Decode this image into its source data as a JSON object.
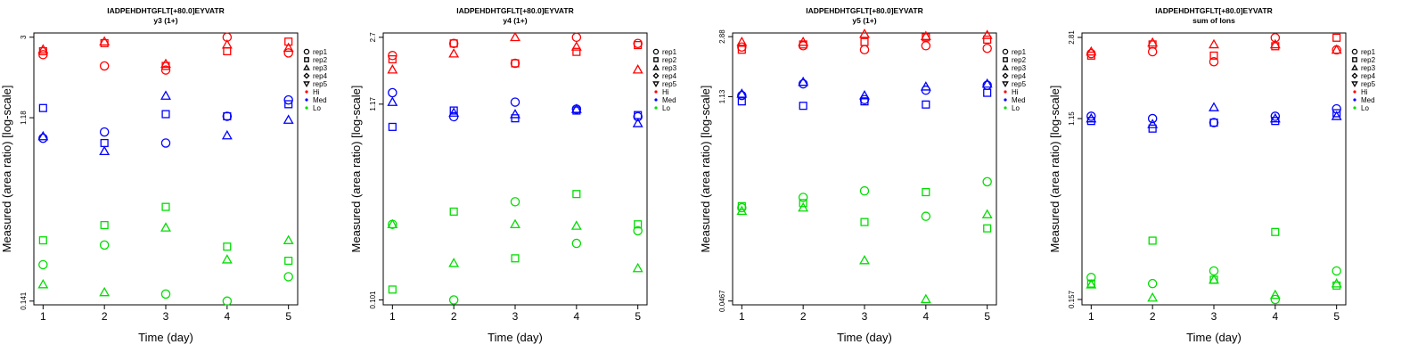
{
  "legend": {
    "reps": [
      {
        "label": "rep1",
        "shape": "circle"
      },
      {
        "label": "rep2",
        "shape": "square"
      },
      {
        "label": "rep3",
        "shape": "triangle-up"
      },
      {
        "label": "rep4",
        "shape": "diamond"
      },
      {
        "label": "rep5",
        "shape": "triangle-down"
      }
    ],
    "levels": [
      {
        "label": "Hi",
        "color": "#ff0000"
      },
      {
        "label": "Med",
        "color": "#0000ff"
      },
      {
        "label": "Lo",
        "color": "#00dd00"
      }
    ]
  },
  "chart_data": [
    {
      "type": "scatter",
      "title": "IADPEHDHTGFLT[+80.0]EYVATR",
      "subtitle": "y3 (1+)",
      "xlabel": "Time (day)",
      "ylabel": "Measured (area ratio) [log-scale]",
      "x_ticks": [
        1,
        2,
        3,
        4,
        5
      ],
      "y_ticks": [
        "0.141",
        "1.18",
        "3"
      ],
      "y_scale": "log",
      "ylim": [
        0.135,
        3.15
      ],
      "series": [
        {
          "level": "Hi",
          "rep": "rep1",
          "points": [
            [
              1,
              2.45
            ],
            [
              2,
              2.15
            ],
            [
              3,
              2.05
            ],
            [
              4,
              3.0
            ],
            [
              5,
              2.5
            ]
          ]
        },
        {
          "level": "Hi",
          "rep": "rep2",
          "points": [
            [
              1,
              2.55
            ],
            [
              2,
              2.8
            ],
            [
              3,
              2.15
            ],
            [
              4,
              2.55
            ],
            [
              5,
              2.85
            ]
          ]
        },
        {
          "level": "Hi",
          "rep": "rep3",
          "points": [
            [
              1,
              2.6
            ],
            [
              2,
              2.85
            ],
            [
              3,
              2.2
            ],
            [
              4,
              2.75
            ],
            [
              5,
              2.65
            ]
          ]
        },
        {
          "level": "Med",
          "rep": "rep1",
          "points": [
            [
              1,
              0.93
            ],
            [
              2,
              1.0
            ],
            [
              3,
              0.88
            ],
            [
              4,
              1.2
            ],
            [
              5,
              1.45
            ]
          ]
        },
        {
          "level": "Med",
          "rep": "rep2",
          "points": [
            [
              1,
              1.32
            ],
            [
              2,
              0.88
            ],
            [
              3,
              1.23
            ],
            [
              4,
              1.2
            ],
            [
              5,
              1.38
            ]
          ]
        },
        {
          "level": "Med",
          "rep": "rep3",
          "points": [
            [
              1,
              0.95
            ],
            [
              2,
              0.8
            ],
            [
              3,
              1.52
            ],
            [
              4,
              0.96
            ],
            [
              5,
              1.15
            ]
          ]
        },
        {
          "level": "Lo",
          "rep": "rep1",
          "points": [
            [
              1,
              0.215
            ],
            [
              2,
              0.27
            ],
            [
              3,
              0.153
            ],
            [
              4,
              0.141
            ],
            [
              5,
              0.187
            ]
          ]
        },
        {
          "level": "Lo",
          "rep": "rep2",
          "points": [
            [
              1,
              0.285
            ],
            [
              2,
              0.34
            ],
            [
              3,
              0.42
            ],
            [
              4,
              0.265
            ],
            [
              5,
              0.225
            ]
          ]
        },
        {
          "level": "Lo",
          "rep": "rep3",
          "points": [
            [
              1,
              0.171
            ],
            [
              2,
              0.156
            ],
            [
              3,
              0.33
            ],
            [
              4,
              0.228
            ],
            [
              5,
              0.285
            ]
          ]
        }
      ]
    },
    {
      "type": "scatter",
      "title": "IADPEHDHTGFLT[+80.0]EYVATR",
      "subtitle": "y4 (1+)",
      "xlabel": "Time (day)",
      "ylabel": "Measured (area ratio) [log-scale]",
      "x_ticks": [
        1,
        2,
        3,
        4,
        5
      ],
      "y_ticks": [
        "0.101",
        "1.17",
        "2.7"
      ],
      "y_scale": "log",
      "ylim": [
        0.095,
        2.85
      ],
      "series": [
        {
          "level": "Hi",
          "rep": "rep1",
          "points": [
            [
              1,
              2.15
            ],
            [
              2,
              2.5
            ],
            [
              3,
              1.95
            ],
            [
              4,
              2.7
            ],
            [
              5,
              2.5
            ]
          ]
        },
        {
          "level": "Hi",
          "rep": "rep2",
          "points": [
            [
              1,
              2.05
            ],
            [
              2,
              2.5
            ],
            [
              3,
              1.95
            ],
            [
              4,
              2.25
            ],
            [
              5,
              2.45
            ]
          ]
        },
        {
          "level": "Hi",
          "rep": "rep3",
          "points": [
            [
              1,
              1.8
            ],
            [
              2,
              2.2
            ],
            [
              3,
              2.7
            ],
            [
              4,
              2.4
            ],
            [
              5,
              1.8
            ]
          ]
        },
        {
          "level": "Med",
          "rep": "rep1",
          "points": [
            [
              1,
              1.35
            ],
            [
              2,
              1.0
            ],
            [
              3,
              1.2
            ],
            [
              4,
              1.1
            ],
            [
              5,
              1.0
            ]
          ]
        },
        {
          "level": "Med",
          "rep": "rep2",
          "points": [
            [
              1,
              0.88
            ],
            [
              2,
              1.08
            ],
            [
              3,
              0.98
            ],
            [
              4,
              1.08
            ],
            [
              5,
              1.02
            ]
          ]
        },
        {
          "level": "Med",
          "rep": "rep3",
          "points": [
            [
              1,
              1.2
            ],
            [
              2,
              1.05
            ],
            [
              3,
              1.03
            ],
            [
              4,
              1.1
            ],
            [
              5,
              0.92
            ]
          ]
        },
        {
          "level": "Lo",
          "rep": "rep1",
          "points": [
            [
              1,
              0.26
            ],
            [
              2,
              0.101
            ],
            [
              3,
              0.345
            ],
            [
              4,
              0.205
            ],
            [
              5,
              0.24
            ]
          ]
        },
        {
          "level": "Lo",
          "rep": "rep2",
          "points": [
            [
              1,
              0.115
            ],
            [
              2,
              0.305
            ],
            [
              3,
              0.17
            ],
            [
              4,
              0.38
            ],
            [
              5,
              0.26
            ]
          ]
        },
        {
          "level": "Lo",
          "rep": "rep3",
          "points": [
            [
              1,
              0.26
            ],
            [
              2,
              0.16
            ],
            [
              3,
              0.26
            ],
            [
              4,
              0.255
            ],
            [
              5,
              0.15
            ]
          ]
        }
      ]
    },
    {
      "type": "scatter",
      "title": "IADPEHDHTGFLT[+80.0]EYVATR",
      "subtitle": "y5 (1+)",
      "xlabel": "Time (day)",
      "ylabel": "Measured (area ratio) [log-scale]",
      "x_ticks": [
        1,
        2,
        3,
        4,
        5
      ],
      "y_ticks": [
        "0.0467",
        "1.13",
        "2.88"
      ],
      "y_scale": "log",
      "ylim": [
        0.044,
        3.05
      ],
      "series": [
        {
          "level": "Hi",
          "rep": "rep1",
          "points": [
            [
              1,
              2.45
            ],
            [
              2,
              2.5
            ],
            [
              3,
              2.35
            ],
            [
              4,
              2.5
            ],
            [
              5,
              2.4
            ]
          ]
        },
        {
          "level": "Hi",
          "rep": "rep2",
          "points": [
            [
              1,
              2.35
            ],
            [
              2,
              2.55
            ],
            [
              3,
              2.65
            ],
            [
              4,
              2.85
            ],
            [
              5,
              2.75
            ]
          ]
        },
        {
          "level": "Hi",
          "rep": "rep3",
          "points": [
            [
              1,
              2.65
            ],
            [
              2,
              2.65
            ],
            [
              3,
              3.0
            ],
            [
              4,
              2.9
            ],
            [
              5,
              2.95
            ]
          ]
        },
        {
          "level": "Med",
          "rep": "rep1",
          "points": [
            [
              1,
              1.15
            ],
            [
              2,
              1.38
            ],
            [
              3,
              1.08
            ],
            [
              4,
              1.25
            ],
            [
              5,
              1.35
            ]
          ]
        },
        {
          "level": "Med",
          "rep": "rep2",
          "points": [
            [
              1,
              1.05
            ],
            [
              2,
              0.98
            ],
            [
              3,
              1.05
            ],
            [
              4,
              1.0
            ],
            [
              5,
              1.2
            ]
          ]
        },
        {
          "level": "Med",
          "rep": "rep3",
          "points": [
            [
              1,
              1.18
            ],
            [
              2,
              1.42
            ],
            [
              3,
              1.15
            ],
            [
              4,
              1.32
            ],
            [
              5,
              1.38
            ]
          ]
        },
        {
          "level": "Lo",
          "rep": "rep1",
          "points": [
            [
              1,
              0.2
            ],
            [
              2,
              0.235
            ],
            [
              3,
              0.26
            ],
            [
              4,
              0.175
            ],
            [
              5,
              0.3
            ]
          ]
        },
        {
          "level": "Lo",
          "rep": "rep2",
          "points": [
            [
              1,
              0.205
            ],
            [
              2,
              0.215
            ],
            [
              3,
              0.16
            ],
            [
              4,
              0.255
            ],
            [
              5,
              0.145
            ]
          ]
        },
        {
          "level": "Lo",
          "rep": "rep3",
          "points": [
            [
              1,
              0.19
            ],
            [
              2,
              0.2
            ],
            [
              3,
              0.088
            ],
            [
              4,
              0.048
            ],
            [
              5,
              0.18
            ]
          ]
        }
      ]
    },
    {
      "type": "scatter",
      "title": "IADPEHDHTGFLT[+80.0]EYVATR",
      "subtitle": "sum of Ions",
      "xlabel": "Time (day)",
      "ylabel": "Measured (area ratio) [log-scale]",
      "x_ticks": [
        1,
        2,
        3,
        4,
        5
      ],
      "y_ticks": [
        "0.157",
        "1.15",
        "2.81"
      ],
      "y_scale": "log",
      "ylim": [
        0.148,
        2.95
      ],
      "series": [
        {
          "level": "Hi",
          "rep": "rep1",
          "points": [
            [
              1,
              2.35
            ],
            [
              2,
              2.4
            ],
            [
              3,
              2.15
            ],
            [
              4,
              2.8
            ],
            [
              5,
              2.45
            ]
          ]
        },
        {
          "level": "Hi",
          "rep": "rep2",
          "points": [
            [
              1,
              2.3
            ],
            [
              2,
              2.6
            ],
            [
              3,
              2.3
            ],
            [
              4,
              2.55
            ],
            [
              5,
              2.8
            ]
          ]
        },
        {
          "level": "Hi",
          "rep": "rep3",
          "points": [
            [
              1,
              2.4
            ],
            [
              2,
              2.65
            ],
            [
              3,
              2.6
            ],
            [
              4,
              2.6
            ],
            [
              5,
              2.45
            ]
          ]
        },
        {
          "level": "Med",
          "rep": "rep1",
          "points": [
            [
              1,
              1.18
            ],
            [
              2,
              1.15
            ],
            [
              3,
              1.1
            ],
            [
              4,
              1.18
            ],
            [
              5,
              1.28
            ]
          ]
        },
        {
          "level": "Med",
          "rep": "rep2",
          "points": [
            [
              1,
              1.12
            ],
            [
              2,
              1.03
            ],
            [
              3,
              1.1
            ],
            [
              4,
              1.12
            ],
            [
              5,
              1.22
            ]
          ]
        },
        {
          "level": "Med",
          "rep": "rep3",
          "points": [
            [
              1,
              1.15
            ],
            [
              2,
              1.08
            ],
            [
              3,
              1.3
            ],
            [
              4,
              1.15
            ],
            [
              5,
              1.18
            ]
          ]
        },
        {
          "level": "Lo",
          "rep": "rep1",
          "points": [
            [
              1,
              0.2
            ],
            [
              2,
              0.187
            ],
            [
              3,
              0.215
            ],
            [
              4,
              0.157
            ],
            [
              5,
              0.215
            ]
          ]
        },
        {
          "level": "Lo",
          "rep": "rep2",
          "points": [
            [
              1,
              0.187
            ],
            [
              2,
              0.3
            ],
            [
              3,
              0.195
            ],
            [
              4,
              0.33
            ],
            [
              5,
              0.183
            ]
          ]
        },
        {
          "level": "Lo",
          "rep": "rep3",
          "points": [
            [
              1,
              0.185
            ],
            [
              2,
              0.16
            ],
            [
              3,
              0.195
            ],
            [
              4,
              0.165
            ],
            [
              5,
              0.187
            ]
          ]
        }
      ]
    }
  ]
}
